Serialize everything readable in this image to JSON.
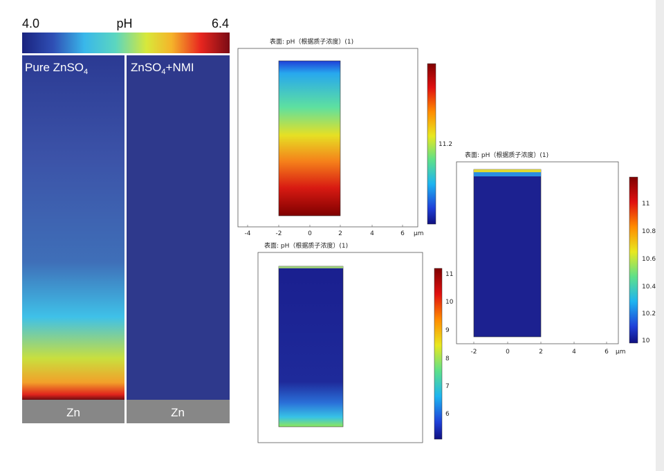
{
  "left_figure": {
    "scale_min": "4.0",
    "scale_title": "pH",
    "scale_max": "6.4",
    "panels": [
      {
        "label": "Pure ZnSO",
        "label_sub": "4",
        "label_rest": "",
        "electrode": "Zn"
      },
      {
        "label": "ZnSO",
        "label_sub": "4",
        "label_rest": "+NMI",
        "electrode": "Zn"
      }
    ]
  },
  "plots": [
    {
      "title": "表面: pH（根据质子浓度）(1)",
      "xticks": [
        "-4",
        "-2",
        "0",
        "2",
        "4",
        "6"
      ],
      "x_unit": "µm",
      "colorbar_ticks": [
        "11.2"
      ]
    },
    {
      "title": "表面: pH（根据质子浓度）(1)",
      "xticks": [],
      "x_unit": "",
      "colorbar_ticks": [
        "11",
        "10",
        "9",
        "8",
        "7",
        "6"
      ]
    },
    {
      "title": "表面: pH（根据质子浓度）(1)",
      "xticks": [
        "-2",
        "0",
        "2",
        "4",
        "6"
      ],
      "x_unit": "µm",
      "colorbar_ticks": [
        "11",
        "10.8",
        "10.6",
        "10.4",
        "10.2",
        "10"
      ]
    }
  ]
}
